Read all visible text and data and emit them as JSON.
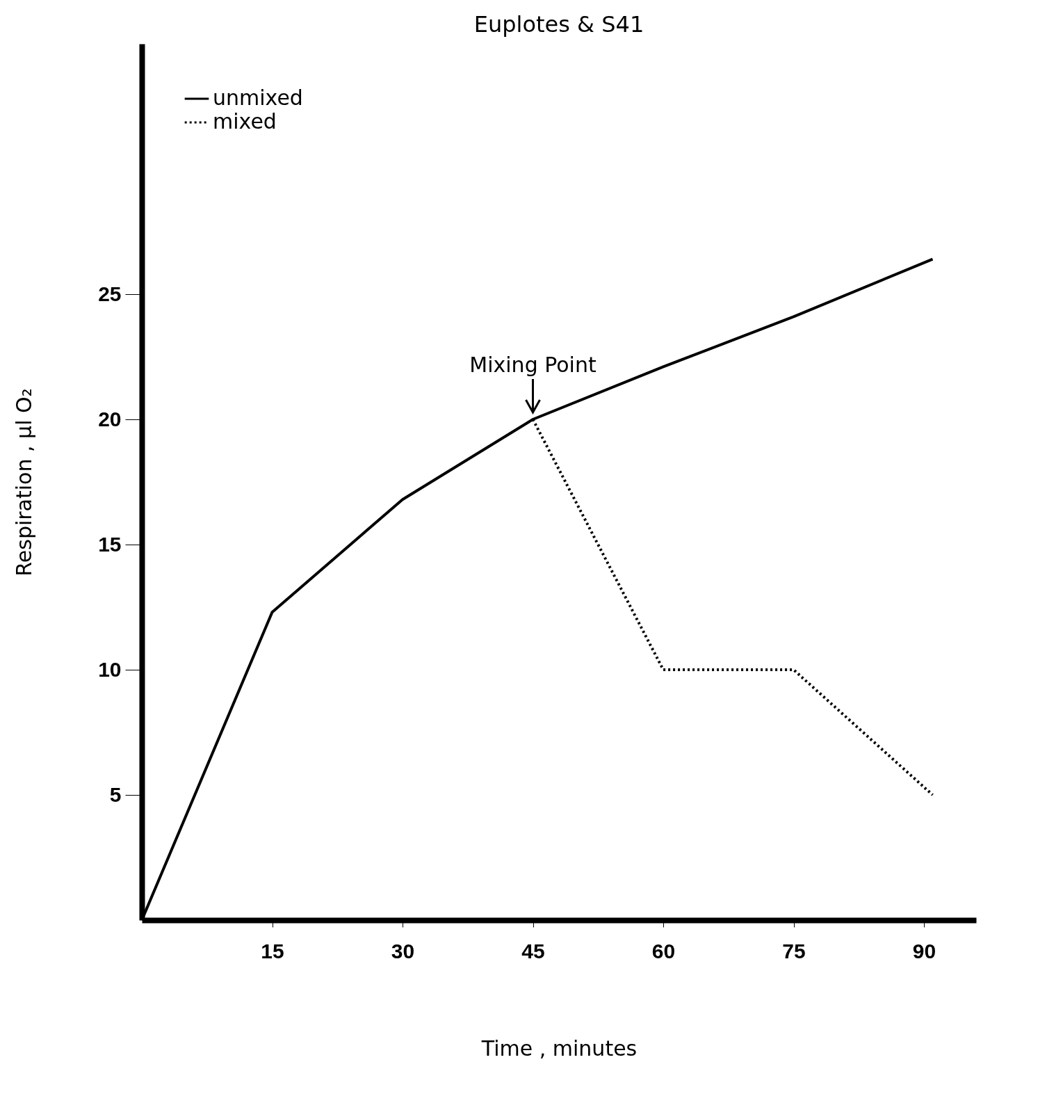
{
  "chart_data": {
    "type": "line",
    "title": "Euplotes & S41",
    "xlabel": "Time , minutes",
    "ylabel": "Respiration , µl O₂",
    "xlim": [
      0,
      96
    ],
    "ylim": [
      0,
      35
    ],
    "xticks": [
      15,
      30,
      45,
      60,
      75,
      90
    ],
    "yticks": [
      5,
      10,
      15,
      20,
      25
    ],
    "grid": false,
    "legend": "top left",
    "marker": "none",
    "series": [
      {
        "name": "unmixed",
        "color": "#000000",
        "line_style": "solid",
        "x": [
          0,
          15,
          30,
          45,
          60,
          75,
          91
        ],
        "values": [
          0,
          12.3,
          16.8,
          20,
          22.1,
          24.1,
          26.4
        ]
      },
      {
        "name": "mixed",
        "color": "#000000",
        "line_style": "dotted",
        "x": [
          45,
          60,
          75,
          91
        ],
        "values": [
          20,
          10,
          10,
          5
        ]
      }
    ],
    "annotations": [
      {
        "text": "Mixing Point",
        "x": 45,
        "y": 20
      }
    ]
  }
}
